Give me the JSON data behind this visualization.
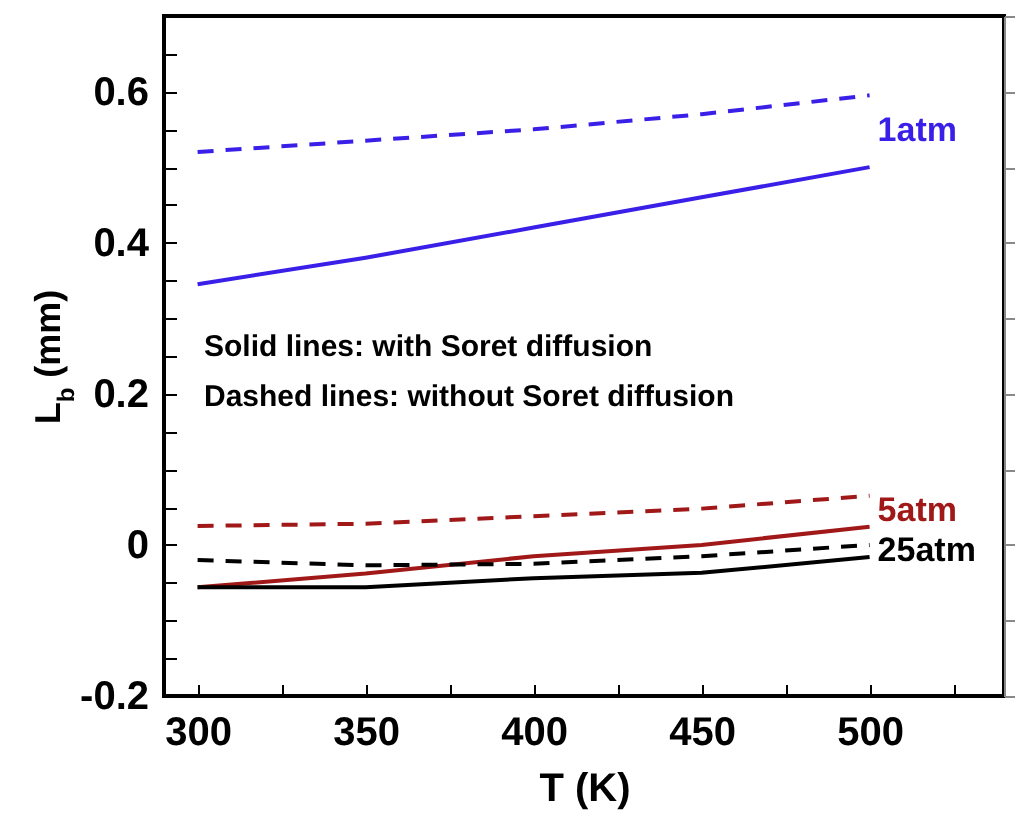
{
  "chart_data": {
    "type": "line",
    "xlabel": "T (K)",
    "ylabel": "L$_{b}$ (mm)",
    "x": [
      300,
      350,
      400,
      450,
      500
    ],
    "xlim": [
      290,
      540
    ],
    "xticks": [
      300,
      {
        "value": 325,
        "label": null
      },
      350,
      {
        "value": 375,
        "label": null
      },
      400,
      {
        "value": 425,
        "label": null
      },
      450,
      {
        "value": 475,
        "label": null
      },
      500,
      {
        "value": 525,
        "label": null
      }
    ],
    "ylim": [
      -0.2,
      0.7
    ],
    "yticks": [
      -0.2,
      {
        "value": -0.15,
        "label": null
      },
      {
        "value": -0.1,
        "label": null
      },
      {
        "value": -0.05,
        "label": null
      },
      0,
      {
        "value": 0.05,
        "label": null
      },
      {
        "value": 0.1,
        "label": null
      },
      {
        "value": 0.15,
        "label": null
      },
      0.2,
      {
        "value": 0.25,
        "label": null
      },
      {
        "value": 0.3,
        "label": null
      },
      {
        "value": 0.35,
        "label": null
      },
      0.4,
      {
        "value": 0.45,
        "label": null
      },
      {
        "value": 0.5,
        "label": null
      },
      {
        "value": 0.55,
        "label": null
      },
      0.6,
      {
        "value": 0.65,
        "label": null
      }
    ],
    "grid": false,
    "series": [
      {
        "name": "1atm",
        "color": "#3a1fe8",
        "line_style": "dashed",
        "values": [
          0.52,
          0.535,
          0.55,
          0.57,
          0.595
        ]
      },
      {
        "color": "#3a1fe8",
        "line_style": "solid",
        "values": [
          0.345,
          0.38,
          0.42,
          0.46,
          0.5
        ]
      },
      {
        "name": "5atm",
        "color": "#a01818",
        "line_style": "dashed",
        "values": [
          0.025,
          0.028,
          0.038,
          0.048,
          0.065
        ]
      },
      {
        "color": "#a01818",
        "line_style": "solid",
        "values": [
          -0.056,
          -0.038,
          -0.015,
          0.0,
          0.024
        ]
      },
      {
        "name": "25atm",
        "color": "#000000",
        "line_style": "dashed",
        "values": [
          -0.02,
          -0.027,
          -0.025,
          -0.015,
          0.0
        ]
      },
      {
        "color": "#000000",
        "line_style": "solid",
        "values": [
          -0.056,
          -0.056,
          -0.044,
          -0.037,
          -0.016
        ]
      }
    ],
    "annotations": [
      "Solid lines: with Soret diffusion",
      "Dashed lines: without Soret  diffusion"
    ]
  }
}
